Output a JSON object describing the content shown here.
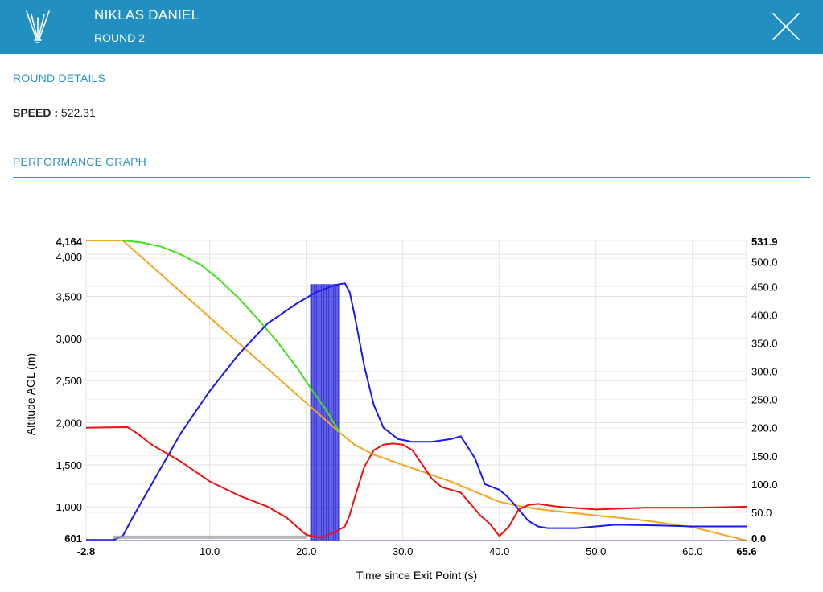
{
  "header": {
    "name": "NIKLAS DANIEL",
    "round": "ROUND 2",
    "logo_icon": "wingsuit-logo-icon",
    "close_icon": "close-icon",
    "background": "#2190c0"
  },
  "round_details": {
    "title": "ROUND DETAILS",
    "speed_label": "SPEED :",
    "speed_value": "522.31"
  },
  "performance": {
    "title": "PERFORMANCE GRAPH"
  },
  "chart_data": {
    "type": "line",
    "xlabel": "Time since Exit Point (s)",
    "ylabel": "Altitude AGL (m)",
    "y2label": "",
    "xlim": [
      -2.8,
      65.6
    ],
    "ylim": [
      601,
      4164
    ],
    "y2lim": [
      0,
      531.9
    ],
    "x_ticks": [
      "-2.8",
      "10.0",
      "20.0",
      "30.0",
      "40.0",
      "50.0",
      "60.0",
      "65.6"
    ],
    "y_ticks": [
      "601",
      "1,000",
      "1,500",
      "2,000",
      "2,500",
      "3,000",
      "3,500",
      "4,000",
      "4,164"
    ],
    "y2_ticks": [
      "0.0",
      "50.0",
      "100.0",
      "150.0",
      "200.0",
      "250.0",
      "300.0",
      "350.0",
      "400.0",
      "450.0",
      "500.0",
      "531.9"
    ],
    "grid": true,
    "highlight_window": {
      "x": [
        20.4,
        23.5
      ],
      "color": "#1c1ce0"
    },
    "series": [
      {
        "axis": "left",
        "color": "#f5a623",
        "points": [
          [
            -2.8,
            4164
          ],
          [
            1.0,
            4164
          ],
          [
            23.5,
            1880
          ],
          [
            25,
            1740
          ],
          [
            27,
            1620
          ],
          [
            30,
            1500
          ],
          [
            35,
            1300
          ],
          [
            40,
            1060
          ],
          [
            43,
            990
          ],
          [
            45,
            960
          ],
          [
            50,
            900
          ],
          [
            55,
            840
          ],
          [
            60,
            760
          ],
          [
            65.6,
            601
          ]
        ]
      },
      {
        "axis": "left",
        "color": "#44e020",
        "points": [
          [
            1.0,
            4164
          ],
          [
            3,
            4140
          ],
          [
            5,
            4090
          ],
          [
            7,
            4000
          ],
          [
            9,
            3880
          ],
          [
            11,
            3700
          ],
          [
            13,
            3480
          ],
          [
            15,
            3230
          ],
          [
            17,
            2960
          ],
          [
            19,
            2660
          ],
          [
            20.4,
            2420
          ],
          [
            22,
            2160
          ],
          [
            23.5,
            1880
          ]
        ]
      },
      {
        "axis": "right",
        "color": "#1a1aee",
        "points": [
          [
            -2.8,
            1
          ],
          [
            0,
            1
          ],
          [
            1,
            8
          ],
          [
            2,
            40
          ],
          [
            3,
            70
          ],
          [
            5,
            130
          ],
          [
            7,
            190
          ],
          [
            10,
            265
          ],
          [
            13,
            330
          ],
          [
            16,
            385
          ],
          [
            19,
            420
          ],
          [
            21,
            440
          ],
          [
            23,
            453
          ],
          [
            24,
            456
          ],
          [
            24.5,
            440
          ],
          [
            25,
            400
          ],
          [
            26,
            310
          ],
          [
            27,
            240
          ],
          [
            28,
            200
          ],
          [
            29.5,
            180
          ],
          [
            31,
            175
          ],
          [
            33,
            175
          ],
          [
            35,
            180
          ],
          [
            36,
            185
          ],
          [
            36.5,
            172
          ],
          [
            37.5,
            145
          ],
          [
            38.5,
            100
          ],
          [
            40,
            90
          ],
          [
            41,
            75
          ],
          [
            42,
            55
          ],
          [
            43,
            35
          ],
          [
            44,
            25
          ],
          [
            45,
            22
          ],
          [
            48,
            22
          ],
          [
            52,
            28
          ],
          [
            56,
            27
          ],
          [
            60,
            25
          ],
          [
            65.6,
            25
          ]
        ]
      },
      {
        "axis": "right",
        "color": "#ee1111",
        "points": [
          [
            -2.8,
            200
          ],
          [
            1.5,
            201
          ],
          [
            2.5,
            190
          ],
          [
            4,
            170
          ],
          [
            7,
            140
          ],
          [
            10,
            105
          ],
          [
            13,
            80
          ],
          [
            16,
            60
          ],
          [
            18,
            40
          ],
          [
            19,
            25
          ],
          [
            20,
            10
          ],
          [
            21.5,
            5
          ],
          [
            23,
            15
          ],
          [
            24,
            25
          ],
          [
            24.5,
            45
          ],
          [
            25,
            75
          ],
          [
            26,
            130
          ],
          [
            27,
            160
          ],
          [
            28,
            170
          ],
          [
            29,
            172
          ],
          [
            30,
            170
          ],
          [
            31,
            160
          ],
          [
            32,
            135
          ],
          [
            33,
            110
          ],
          [
            34,
            95
          ],
          [
            36,
            85
          ],
          [
            37,
            65
          ],
          [
            38,
            45
          ],
          [
            39,
            30
          ],
          [
            40,
            8
          ],
          [
            41,
            25
          ],
          [
            42,
            55
          ],
          [
            43,
            63
          ],
          [
            44,
            65
          ],
          [
            46,
            60
          ],
          [
            50,
            55
          ],
          [
            55,
            58
          ],
          [
            60,
            58
          ],
          [
            65.6,
            60
          ]
        ]
      },
      {
        "axis": "left",
        "color": "#999999",
        "points": [
          [
            0,
            640
          ],
          [
            20,
            640
          ]
        ]
      }
    ]
  }
}
